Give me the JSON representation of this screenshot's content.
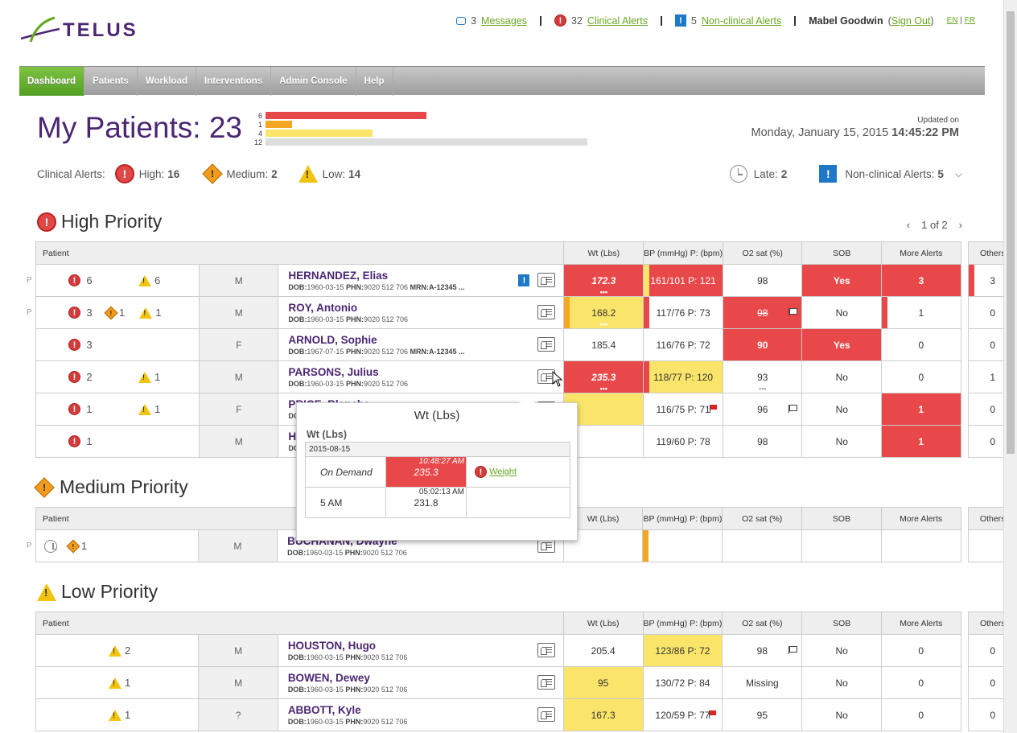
{
  "brand": {
    "name": "TELUS",
    "color": "#4b2672",
    "accent": "#66a81e"
  },
  "topbar": {
    "messages_count": "3",
    "messages_label": "Messages",
    "clinical_count": "32",
    "clinical_label": "Clinical Alerts",
    "nonclinical_count": "5",
    "nonclinical_label": "Non-clinical Alerts",
    "user": "Mabel Goodwin",
    "signout": "Sign Out",
    "lang_en": "EN",
    "lang_fr": "FR"
  },
  "nav": [
    "Dashboard",
    "Patients",
    "Workload",
    "Interventions",
    "Admin Console",
    "Help"
  ],
  "header": {
    "title": "My Patients: 23",
    "distribution": [
      {
        "label": "6",
        "value": 6,
        "color": "#e8484a"
      },
      {
        "label": "1",
        "value": 1,
        "color": "#f5a623"
      },
      {
        "label": "4",
        "value": 4,
        "color": "#fae56a"
      },
      {
        "label": "12",
        "value": 12,
        "color": "#dddddd"
      }
    ],
    "updated_label": "Updated on",
    "updated_date": "Monday, January 15, 2015",
    "updated_time": "14:45:22 PM"
  },
  "alerts_summary": {
    "label": "Clinical Alerts:",
    "high_label": "High:",
    "high": "16",
    "medium_label": "Medium:",
    "medium": "2",
    "low_label": "Low:",
    "low": "14",
    "late_label": "Late:",
    "late": "2",
    "nonclinical_label": "Non-clinical Alerts:",
    "nonclinical": "5"
  },
  "columns": {
    "patient": "Patient",
    "wt": "Wt (Lbs)",
    "bp": "BP (mmHg) P: (bpm)",
    "o2": "O2 sat (%)",
    "sob": "SOB",
    "more": "More Alerts",
    "others": "Others"
  },
  "high": {
    "title": "High Priority",
    "pager": "1 of 2",
    "rows": [
      {
        "p": "P",
        "h": "6",
        "m": "",
        "l": "6",
        "sex": "M",
        "name": "HERNANDEZ, Elias",
        "dob": "1960-03-15",
        "phn": "9020 512 706",
        "mrn": "A-12345 ...",
        "wt": "172.3",
        "bp": "161/101 P: 121",
        "o2": "98",
        "sob": "Yes",
        "more": "3",
        "others": "3"
      },
      {
        "p": "P",
        "h": "3",
        "m": "1",
        "l": "1",
        "sex": "M",
        "name": "ROY, Antonio",
        "dob": "1960-03-15",
        "phn": "9020 512 706",
        "mrn": "",
        "wt": "168.2",
        "bp": "117/76 P: 73",
        "o2": "98",
        "sob": "No",
        "more": "1",
        "others": "0"
      },
      {
        "p": "",
        "h": "3",
        "m": "",
        "l": "",
        "sex": "F",
        "name": "ARNOLD, Sophie",
        "dob": "1967-07-15",
        "phn": "9020 512 706",
        "mrn": "A-12345 ...",
        "wt": "185.4",
        "bp": "116/76 P: 72",
        "o2": "90",
        "sob": "Yes",
        "more": "0",
        "others": "0"
      },
      {
        "p": "",
        "h": "2",
        "m": "",
        "l": "1",
        "sex": "M",
        "name": "PARSONS, Julius",
        "dob": "1960-03-15",
        "phn": "9020 512 706",
        "mrn": "",
        "wt": "235.3",
        "bp": "118/77 P: 120",
        "o2": "93",
        "sob": "No",
        "more": "0",
        "others": "1"
      },
      {
        "p": "",
        "h": "1",
        "m": "",
        "l": "1",
        "sex": "F",
        "name": "PRICE, Blanche",
        "dob": "1960-03-15",
        "phn": "",
        "mrn": "",
        "wt": "",
        "bp": "116/75 P: 71",
        "o2": "96",
        "sob": "No",
        "more": "1",
        "others": "0"
      },
      {
        "p": "",
        "h": "1",
        "m": "",
        "l": "",
        "sex": "M",
        "name": "HOLMES, Manue",
        "dob": "1960-03-15",
        "phn": "",
        "mrn": "",
        "wt": "",
        "bp": "119/60 P: 78",
        "o2": "98",
        "sob": "No",
        "more": "1",
        "others": "0"
      }
    ]
  },
  "medium": {
    "title": "Medium Priority",
    "rows": [
      {
        "p": "P",
        "m": "1",
        "sex": "M",
        "name": "BUCHANAN, Dwayne",
        "dob": "1960-03-15",
        "phn": "9020 512 706"
      }
    ]
  },
  "low": {
    "title": "Low Priority",
    "rows": [
      {
        "l": "2",
        "sex": "M",
        "name": "HOUSTON, Hugo",
        "dob": "1960-03-15",
        "phn": "9020 512 706",
        "wt": "205.4",
        "bp": "123/86 P: 72",
        "o2": "98",
        "sob": "No",
        "more": "0",
        "others": "0"
      },
      {
        "l": "1",
        "sex": "M",
        "name": "BOWEN, Dewey",
        "dob": "1960-03-15",
        "phn": "9020 512 706",
        "wt": "95",
        "bp": "130/72 P: 84",
        "o2": "Missing",
        "sob": "No",
        "more": "0",
        "others": "0"
      },
      {
        "l": "1",
        "sex": "?",
        "name": "ABBOTT, Kyle",
        "dob": "1960-03-15",
        "phn": "9020 512 706",
        "wt": "167.3",
        "bp": "120/59 P: 77",
        "o2": "95",
        "sob": "No",
        "more": "0",
        "others": "0"
      }
    ]
  },
  "popup": {
    "title": "Wt (Lbs)",
    "subtitle": "Wt (Lbs)",
    "date": "2015-08-15",
    "rows": [
      {
        "label": "On Demand",
        "time": "10:48:27 AM",
        "value": "235.3",
        "alert": "Weight"
      },
      {
        "label": "5 AM",
        "time": "05:02:13 AM",
        "value": "231.8",
        "alert": ""
      }
    ]
  },
  "labels": {
    "dob": "DOB:",
    "phn": "PHN:",
    "mrn": "MRN:"
  }
}
